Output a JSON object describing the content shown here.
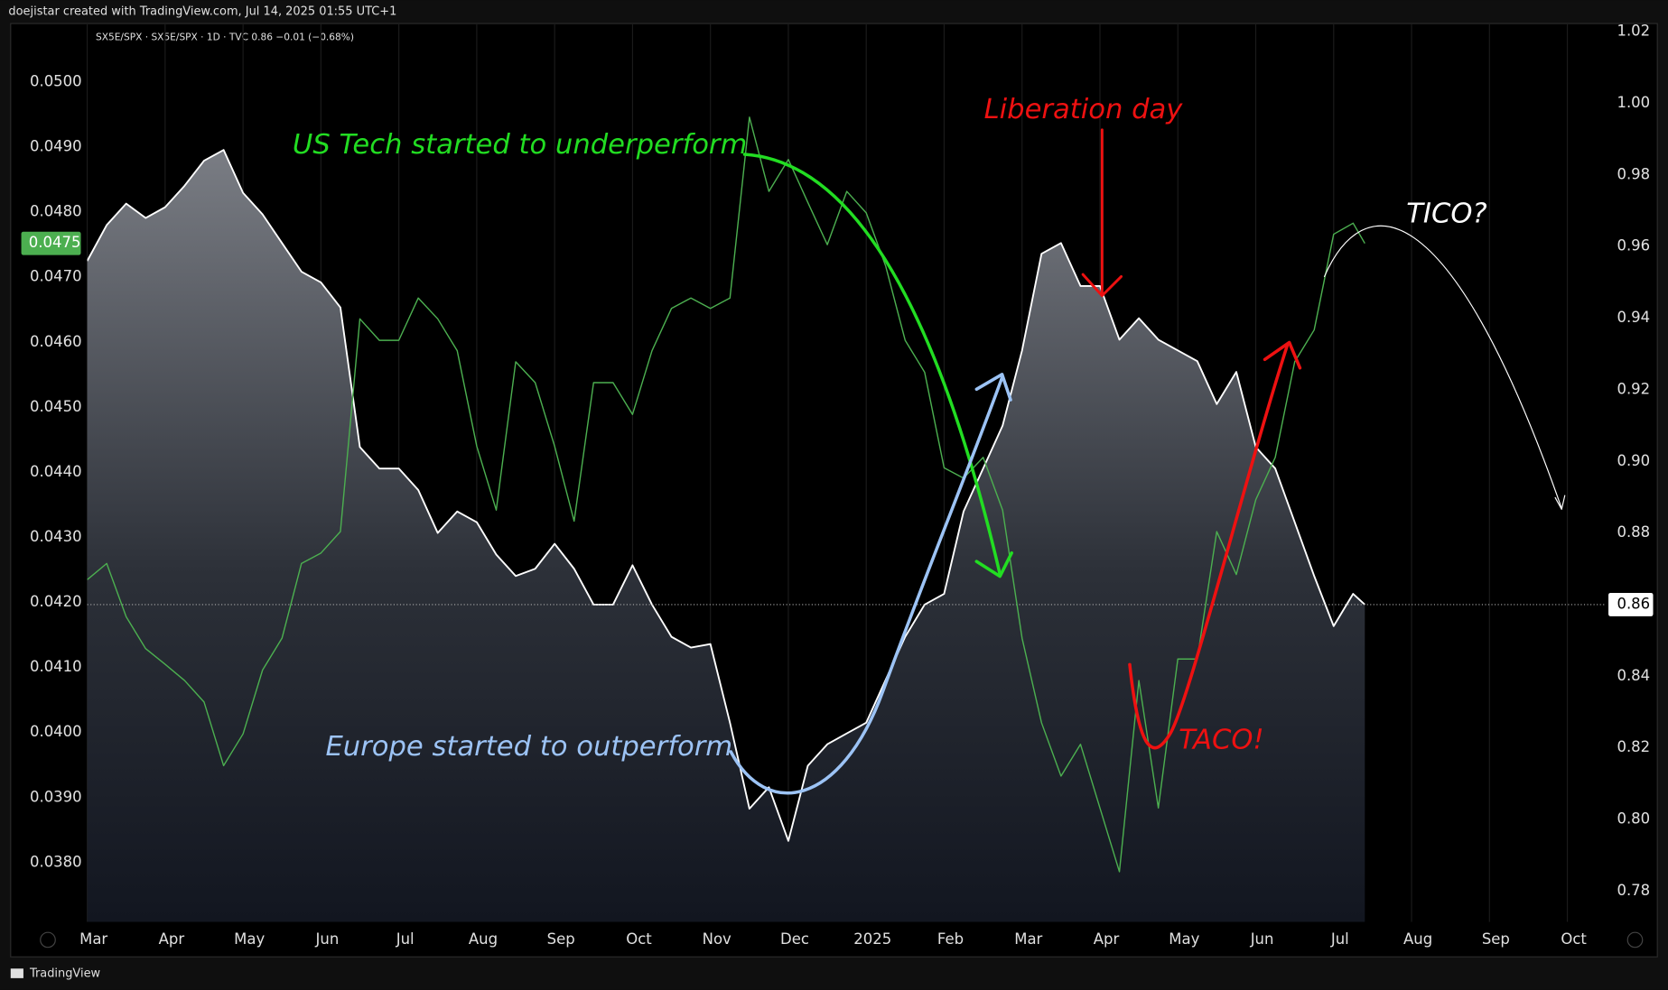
{
  "chart_data": {
    "type": "line",
    "header": "doejistar created with TradingView.com, Jul 14, 2025 01:55 UTC+1",
    "legend_text": "SX5E/SPX · SX5E/SPX · 1D · TVC  0.86  −0.01 (−0.68%)",
    "footer": "TradingView",
    "annotations": {
      "us_tech": "US Tech started to underperform",
      "liberation": "Liberation day",
      "tico": "TICO?",
      "taco": "TACO!",
      "europe": "Europe started to outperform"
    },
    "x": [
      0,
      0.25,
      0.5,
      0.75,
      1,
      1.25,
      1.5,
      1.75,
      2,
      2.25,
      2.5,
      2.75,
      3,
      3.25,
      3.5,
      3.75,
      4,
      4.25,
      4.5,
      4.75,
      5,
      5.25,
      5.5,
      5.75,
      6,
      6.25,
      6.5,
      6.75,
      7,
      7.25,
      7.5,
      7.75,
      8,
      8.25,
      8.5,
      8.75,
      9,
      9.25,
      9.5,
      9.75,
      10,
      10.25,
      10.5,
      10.75,
      11,
      11.25,
      11.5,
      11.75,
      12,
      12.25,
      12.5,
      12.75,
      13,
      13.25,
      13.5,
      13.75,
      14,
      14.25,
      14.5,
      14.75,
      15,
      15.25,
      15.5,
      15.75,
      16,
      16.25,
      16.4
    ],
    "xlim": [
      0,
      19.5
    ],
    "xticks": [
      {
        "value": 0,
        "label": "Mar"
      },
      {
        "value": 1,
        "label": "Apr"
      },
      {
        "value": 2,
        "label": "May"
      },
      {
        "value": 3,
        "label": "Jun"
      },
      {
        "value": 4,
        "label": "Jul"
      },
      {
        "value": 5,
        "label": "Aug"
      },
      {
        "value": 6,
        "label": "Sep"
      },
      {
        "value": 7,
        "label": "Oct"
      },
      {
        "value": 8,
        "label": "Nov"
      },
      {
        "value": 9,
        "label": "Dec"
      },
      {
        "value": 10,
        "label": "2025"
      },
      {
        "value": 11,
        "label": "Feb"
      },
      {
        "value": 12,
        "label": "Mar"
      },
      {
        "value": 13,
        "label": "Apr"
      },
      {
        "value": 14,
        "label": "May"
      },
      {
        "value": 15,
        "label": "Jun"
      },
      {
        "value": 16,
        "label": "Jul"
      },
      {
        "value": 17,
        "label": "Aug"
      },
      {
        "value": 18,
        "label": "Sep"
      },
      {
        "value": 19,
        "label": "Oct"
      }
    ],
    "xgrid": true,
    "ylim": [
      0.03709,
      0.0509
    ],
    "yticks": [
      {
        "value": 0.05,
        "label": "0.0500"
      },
      {
        "value": 0.049,
        "label": "0.0490"
      },
      {
        "value": 0.048,
        "label": "0.0480"
      },
      {
        "value": 0.047,
        "label": "0.0470"
      },
      {
        "value": 0.046,
        "label": "0.0460"
      },
      {
        "value": 0.045,
        "label": "0.0450"
      },
      {
        "value": 0.044,
        "label": "0.0440"
      },
      {
        "value": 0.043,
        "label": "0.0430"
      },
      {
        "value": 0.042,
        "label": "0.0420"
      },
      {
        "value": 0.041,
        "label": "0.0410"
      },
      {
        "value": 0.04,
        "label": "0.0400"
      },
      {
        "value": 0.039,
        "label": "0.0390"
      },
      {
        "value": 0.038,
        "label": "0.0380"
      }
    ],
    "y2lim": [
      0.7714,
      1.0223
    ],
    "y2ticks": [
      1.02,
      {
        "value": 1,
        "label": "1.00"
      },
      0.98,
      0.96,
      0.94,
      0.92,
      {
        "value": 0.9,
        "label": "0.90"
      },
      0.88,
      0.86,
      0.84,
      0.82,
      {
        "value": 0.8,
        "label": "0.80"
      },
      0.78
    ],
    "series": [
      {
        "axis": "y2",
        "color": "#ffffff",
        "area": true,
        "last_label": "0.86",
        "values": [
          0.956,
          0.966,
          0.972,
          0.968,
          0.971,
          0.977,
          0.984,
          0.987,
          0.975,
          0.969,
          0.961,
          0.953,
          0.95,
          0.943,
          0.904,
          0.898,
          0.898,
          0.892,
          0.88,
          0.886,
          0.883,
          0.874,
          0.868,
          0.87,
          0.877,
          0.87,
          0.86,
          0.86,
          0.871,
          0.86,
          0.851,
          0.848,
          0.849,
          0.827,
          0.803,
          0.809,
          0.794,
          0.815,
          0.821,
          0.824,
          0.827,
          0.839,
          0.851,
          0.86,
          0.863,
          0.886,
          0.898,
          0.91,
          0.931,
          0.958,
          0.961,
          0.949,
          0.949,
          0.934,
          0.94,
          0.934,
          0.931,
          0.928,
          0.916,
          0.925,
          0.904,
          0.898,
          0.883,
          0.868,
          0.854,
          0.863,
          0.86
        ]
      },
      {
        "axis": "y",
        "color": "#4caf50",
        "area": false,
        "last_label": "0.0475",
        "values": [
          0.04235,
          0.0426,
          0.04178,
          0.04129,
          0.04105,
          0.0408,
          0.04047,
          0.03949,
          0.03998,
          0.04096,
          0.04145,
          0.0426,
          0.04276,
          0.04309,
          0.04636,
          0.04603,
          0.04603,
          0.04668,
          0.04636,
          0.04587,
          0.0444,
          0.04342,
          0.0457,
          0.04538,
          0.0444,
          0.04325,
          0.04538,
          0.04538,
          0.04489,
          0.04587,
          0.04652,
          0.04668,
          0.04652,
          0.04668,
          0.04946,
          0.04832,
          0.04881,
          0.04815,
          0.0475,
          0.04832,
          0.04799,
          0.04717,
          0.04603,
          0.04554,
          0.04407,
          0.04391,
          0.04423,
          0.04342,
          0.04145,
          0.04015,
          0.03933,
          0.03982,
          0.03884,
          0.03786,
          0.0408,
          0.03884,
          0.04113,
          0.04113,
          0.04309,
          0.04243,
          0.04358,
          0.04423,
          0.0457,
          0.04619,
          0.04766,
          0.04783,
          0.04752
        ]
      }
    ]
  }
}
